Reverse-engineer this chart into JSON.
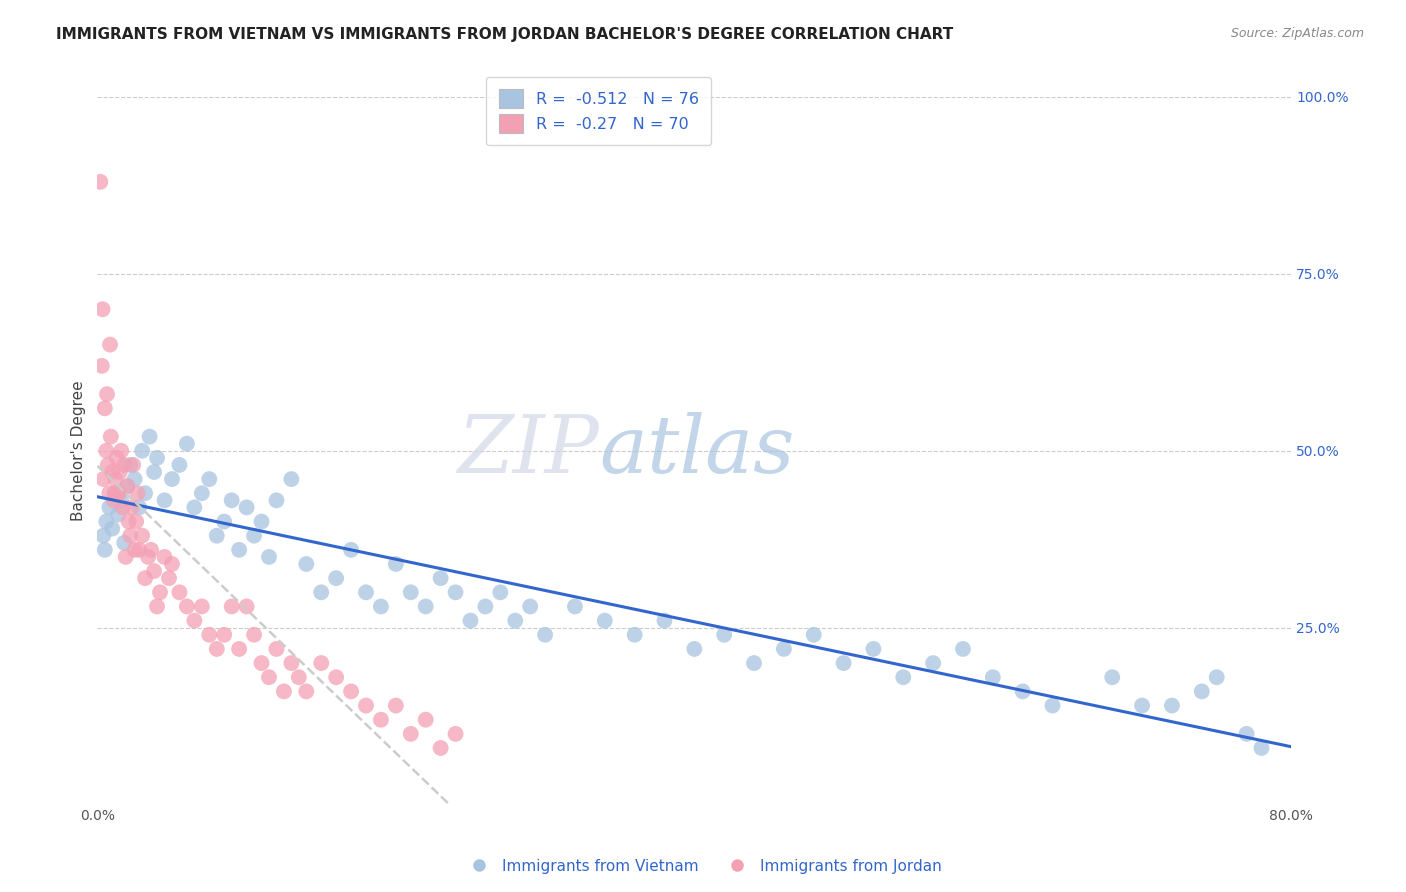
{
  "title": "IMMIGRANTS FROM VIETNAM VS IMMIGRANTS FROM JORDAN BACHELOR'S DEGREE CORRELATION CHART",
  "source": "Source: ZipAtlas.com",
  "ylabel": "Bachelor's Degree",
  "R_vietnam": -0.512,
  "N_vietnam": 76,
  "R_jordan": -0.27,
  "N_jordan": 70,
  "color_vietnam": "#a8c4e0",
  "color_jordan": "#f4a0b4",
  "trendline_vietnam": "#3366cc",
  "trendline_jordan": "#cccccc",
  "watermark_zip": "ZIP",
  "watermark_atlas": "atlas",
  "background": "#ffffff",
  "grid_color": "#cccccc",
  "vietnam_x": [
    0.4,
    0.5,
    0.6,
    0.8,
    1.0,
    1.2,
    1.4,
    1.6,
    1.8,
    2.0,
    2.2,
    2.5,
    2.8,
    3.0,
    3.2,
    3.5,
    3.8,
    4.0,
    4.5,
    5.0,
    5.5,
    6.0,
    6.5,
    7.0,
    7.5,
    8.0,
    8.5,
    9.0,
    9.5,
    10.0,
    10.5,
    11.0,
    11.5,
    12.0,
    13.0,
    14.0,
    15.0,
    16.0,
    17.0,
    18.0,
    19.0,
    20.0,
    21.0,
    22.0,
    23.0,
    24.0,
    25.0,
    26.0,
    27.0,
    28.0,
    29.0,
    30.0,
    32.0,
    34.0,
    36.0,
    38.0,
    40.0,
    42.0,
    44.0,
    46.0,
    48.0,
    50.0,
    52.0,
    54.0,
    56.0,
    58.0,
    60.0,
    62.0,
    64.0,
    68.0,
    70.0,
    72.0,
    74.0,
    75.0,
    77.0,
    78.0
  ],
  "vietnam_y": [
    38.0,
    36.0,
    40.0,
    42.0,
    39.0,
    44.0,
    41.0,
    43.0,
    37.0,
    45.0,
    48.0,
    46.0,
    42.0,
    50.0,
    44.0,
    52.0,
    47.0,
    49.0,
    43.0,
    46.0,
    48.0,
    51.0,
    42.0,
    44.0,
    46.0,
    38.0,
    40.0,
    43.0,
    36.0,
    42.0,
    38.0,
    40.0,
    35.0,
    43.0,
    46.0,
    34.0,
    30.0,
    32.0,
    36.0,
    30.0,
    28.0,
    34.0,
    30.0,
    28.0,
    32.0,
    30.0,
    26.0,
    28.0,
    30.0,
    26.0,
    28.0,
    24.0,
    28.0,
    26.0,
    24.0,
    26.0,
    22.0,
    24.0,
    20.0,
    22.0,
    24.0,
    20.0,
    22.0,
    18.0,
    20.0,
    22.0,
    18.0,
    16.0,
    14.0,
    18.0,
    14.0,
    14.0,
    16.0,
    18.0,
    10.0,
    8.0
  ],
  "jordan_x": [
    0.2,
    0.3,
    0.4,
    0.5,
    0.6,
    0.7,
    0.8,
    0.9,
    1.0,
    1.1,
    1.2,
    1.3,
    1.4,
    1.5,
    1.6,
    1.7,
    1.8,
    1.9,
    2.0,
    2.1,
    2.2,
    2.3,
    2.4,
    2.5,
    2.6,
    2.7,
    2.8,
    3.0,
    3.2,
    3.4,
    3.6,
    3.8,
    4.0,
    4.2,
    4.5,
    4.8,
    5.0,
    5.5,
    6.0,
    6.5,
    7.0,
    7.5,
    8.0,
    8.5,
    9.0,
    9.5,
    10.0,
    10.5,
    11.0,
    11.5,
    12.0,
    12.5,
    13.0,
    13.5,
    14.0,
    15.0,
    16.0,
    17.0,
    18.0,
    19.0,
    20.0,
    21.0,
    22.0,
    23.0,
    24.0,
    0.35,
    0.65,
    0.85,
    1.15,
    1.45
  ],
  "jordan_y": [
    88.0,
    62.0,
    46.0,
    56.0,
    50.0,
    48.0,
    44.0,
    52.0,
    47.0,
    43.0,
    46.0,
    49.0,
    44.0,
    47.0,
    50.0,
    42.0,
    48.0,
    35.0,
    45.0,
    40.0,
    38.0,
    42.0,
    48.0,
    36.0,
    40.0,
    44.0,
    36.0,
    38.0,
    32.0,
    35.0,
    36.0,
    33.0,
    28.0,
    30.0,
    35.0,
    32.0,
    34.0,
    30.0,
    28.0,
    26.0,
    28.0,
    24.0,
    22.0,
    24.0,
    28.0,
    22.0,
    28.0,
    24.0,
    20.0,
    18.0,
    22.0,
    16.0,
    20.0,
    18.0,
    16.0,
    20.0,
    18.0,
    16.0,
    14.0,
    12.0,
    14.0,
    10.0,
    12.0,
    8.0,
    10.0,
    70.0,
    58.0,
    65.0,
    44.0,
    44.0
  ]
}
